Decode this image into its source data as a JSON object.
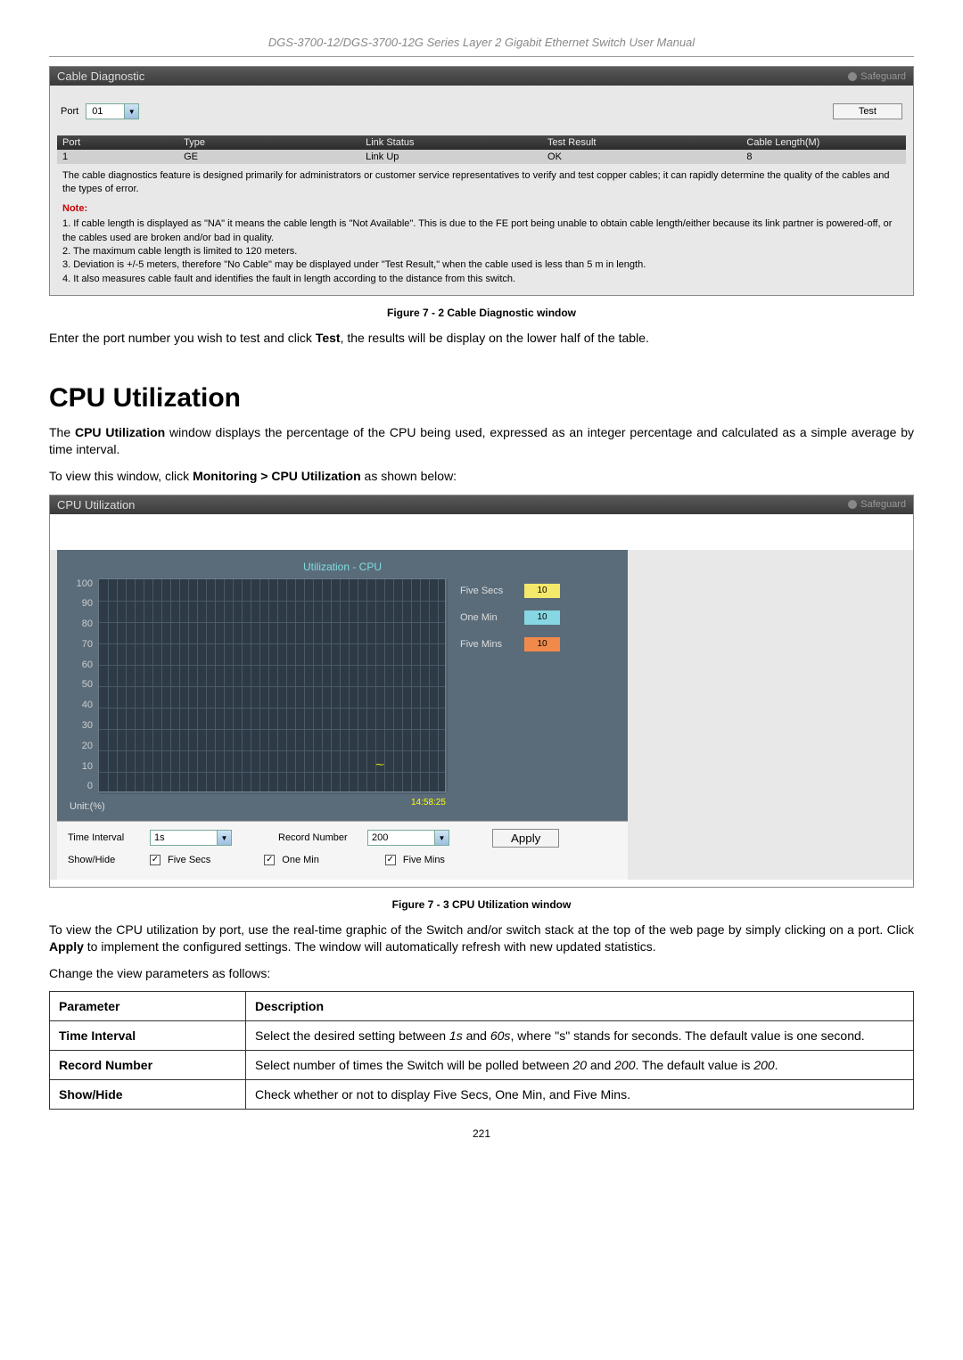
{
  "doc_header": "DGS-3700-12/DGS-3700-12G Series Layer 2 Gigabit Ethernet Switch User Manual",
  "cable_diag": {
    "title": "Cable Diagnostic",
    "safeguard": "Safeguard",
    "port_label": "Port",
    "port_value": "01",
    "test_btn": "Test",
    "headers": [
      "Port",
      "Type",
      "Link Status",
      "Test Result",
      "Cable Length(M)"
    ],
    "row": [
      "1",
      "GE",
      "Link Up",
      "OK",
      "8"
    ],
    "notes_intro": "The cable diagnostics feature is designed primarily for administrators or customer service representatives to verify and test copper cables; it can rapidly determine the quality of the cables and the types of error.",
    "note_label": "Note:",
    "note1": "1. If cable length is displayed as \"NA\" it means the cable length is \"Not Available\". This is due to the FE port being unable to obtain cable length/either because its link partner is powered-off, or the cables used are broken and/or bad in quality.",
    "note2": "2. The maximum cable length is limited to 120 meters.",
    "note3": "3. Deviation is +/-5 meters, therefore \"No Cable\" may be displayed under \"Test Result,\" when the cable used is less than 5 m in length.",
    "note4": "4. It also measures cable fault and identifies the fault in length according to the distance from this switch."
  },
  "fig72": "Figure 7 - 2 Cable Diagnostic window",
  "text_after_fig72": "Enter the port number you wish to test and click Test, the results will be display on the lower half of the table.",
  "h1": "CPU Utilization",
  "cpu_para1a": "The ",
  "cpu_para1b": "CPU Utilization",
  "cpu_para1c": " window displays the percentage of the CPU being used, expressed as an integer percentage and calculated as a simple average by time interval.",
  "cpu_para2a": "To view this window, click ",
  "cpu_para2b": "Monitoring > CPU Utilization",
  "cpu_para2c": " as shown below:",
  "cpu_panel": {
    "title": "CPU Utilization",
    "safeguard": "Safeguard",
    "chart_title": "Utilization - CPU",
    "yaxis": [
      "100",
      "90",
      "80",
      "70",
      "60",
      "50",
      "40",
      "30",
      "20",
      "10",
      "0"
    ],
    "clock": "14:58:25",
    "legend": [
      {
        "label": "Five Secs",
        "val": "10",
        "color": "#f5e96b"
      },
      {
        "label": "One Min",
        "val": "10",
        "color": "#87d6e3"
      },
      {
        "label": "Five Mins",
        "val": "10",
        "color": "#f08a4a"
      }
    ],
    "unit": "Unit:(%)",
    "time_interval_label": "Time Interval",
    "time_interval_value": "1s",
    "record_number_label": "Record Number",
    "record_number_value": "200",
    "apply": "Apply",
    "showhide_label": "Show/Hide",
    "cb1": "Five Secs",
    "cb2": "One Min",
    "cb3": "Five Mins"
  },
  "fig73": "Figure 7 - 3 CPU Utilization window",
  "cpu_para3": "To view the CPU utilization by port, use the real-time graphic of the Switch and/or switch stack at the top of the web page by simply clicking on a port. Click Apply to implement the configured settings. The window will automatically refresh with new updated statistics.",
  "cpu_para4": "Change the view parameters as follows:",
  "param_table": {
    "h1": "Parameter",
    "h2": "Description",
    "r1p": "Time Interval",
    "r1d": "Select the desired setting between 1s and 60s, where \"s\" stands for seconds. The default value is one second.",
    "r2p": "Record Number",
    "r2d": "Select number of times the Switch will be polled between 20 and 200. The default value is 200.",
    "r3p": "Show/Hide",
    "r3d": "Check whether or not to display Five Secs, One Min, and Five Mins."
  },
  "page_num": "221"
}
